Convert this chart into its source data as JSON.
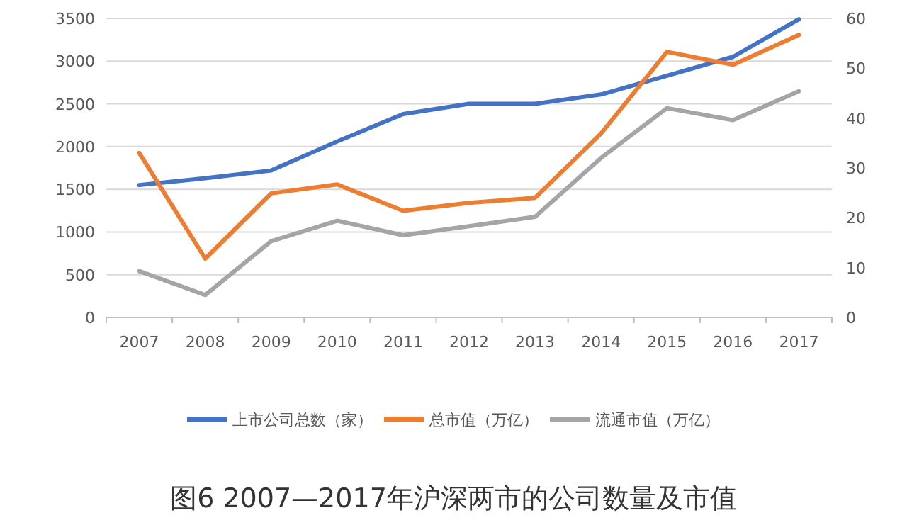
{
  "chart_data": {
    "type": "line",
    "title": "图6  2007—2017年沪深两市的公司数量及市值",
    "categories": [
      "2007",
      "2008",
      "2009",
      "2010",
      "2011",
      "2012",
      "2013",
      "2014",
      "2015",
      "2016",
      "2017"
    ],
    "series": [
      {
        "name": "上市公司总数（家）",
        "color": "#4472c4",
        "values": [
          1550,
          1630,
          1720,
          2060,
          2380,
          2500,
          2500,
          2610,
          2830,
          3050,
          3490
        ]
      },
      {
        "name": "总市值（万亿）",
        "color": "#ed7d31",
        "axis": "y2",
        "values": [
          33,
          11.8,
          24.9,
          26.7,
          21.4,
          23,
          24,
          36.9,
          53.3,
          50.7,
          56.7
        ]
      },
      {
        "name": "流通市值（万亿）",
        "color": "#a5a5a5",
        "axis": "y2",
        "values": [
          9.3,
          4.5,
          15.3,
          19.4,
          16.5,
          18.3,
          20.2,
          32,
          42,
          39.6,
          45.4
        ]
      }
    ],
    "ylim": [
      0,
      3500
    ],
    "yticks": [
      0,
      500,
      1000,
      1500,
      2000,
      2500,
      3000,
      3500
    ],
    "y2lim": [
      0,
      60
    ],
    "y2ticks": [
      0,
      10,
      20,
      30,
      40,
      50,
      60
    ],
    "grid": "y",
    "legend": "bottom",
    "marker": "none",
    "line_style": "solid"
  }
}
